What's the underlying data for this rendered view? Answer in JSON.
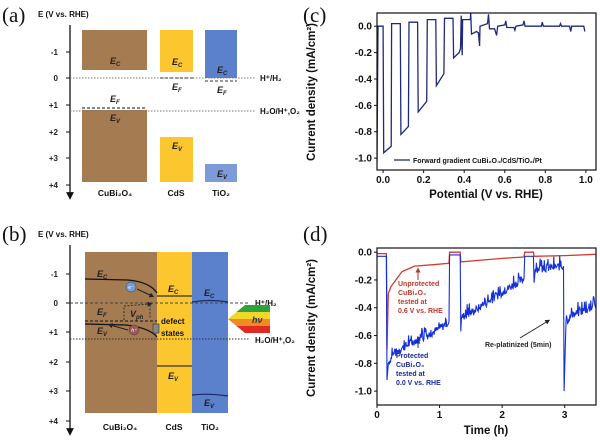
{
  "panel_a": {
    "label": "(a)",
    "axis_title": "E (V vs. RHE)",
    "ticks": [
      "-1",
      "0",
      "+1",
      "+2",
      "+3",
      "+4"
    ],
    "materials": [
      "CuBi₂O₄",
      "CdS",
      "TiO₂"
    ],
    "colors": {
      "CuBi2O4": "#a57b52",
      "CdS": "#fcc62f",
      "TiO2": "#5b80cc",
      "TiO2_vb": "#7c9bd8"
    },
    "band_symbol": "E",
    "subs": {
      "c": "C",
      "f": "F",
      "v": "V"
    },
    "redox": [
      "H⁺/H₂",
      "H₂O/H⁺,O₂"
    ]
  },
  "panel_b": {
    "label": "(b)",
    "axis_title": "E (V vs. RHE)",
    "ticks": [
      "-1",
      "0",
      "+1",
      "+2",
      "+3",
      "+4"
    ],
    "materials": [
      "CuBi₂O₄",
      "CdS",
      "TiO₂"
    ],
    "band_symbol": "E",
    "subs": {
      "c": "C",
      "f": "F",
      "v": "V",
      "ph": "ph"
    },
    "v_symbol": "V",
    "electron": "e⁻",
    "hole": "h⁺",
    "defect": [
      "defect",
      "states"
    ],
    "light": "hν",
    "redox": [
      "H⁺/H₂",
      "H₂O/H⁺,O₂"
    ]
  },
  "chart_data": [
    {
      "panel": "(c)",
      "type": "line",
      "xlabel": "Potential (V vs. RHE)",
      "ylabel": "Current density (mA/cm²)",
      "xlim": [
        -0.03,
        1.05
      ],
      "ylim": [
        -1.09,
        0.1
      ],
      "xticks": [
        "0.0",
        "0.2",
        "0.4",
        "0.6",
        "0.8",
        "1.0"
      ],
      "xtick_values": [
        0,
        0.2,
        0.4,
        0.6,
        0.8,
        1.0
      ],
      "yticks": [
        "0.0",
        "-0.2",
        "-0.4",
        "-0.6",
        "-0.8",
        "-1.0"
      ],
      "ytick_values": [
        0,
        -0.2,
        -0.4,
        -0.6,
        -0.8,
        -1.0
      ],
      "legend": "top-less; bottom-right",
      "series": [
        {
          "name": "Forward gradient CuBi₂O₄/CdS/TiO₂/Pt",
          "color": "#1f2a7a",
          "points": [
            [
              -0.03,
              -1.03
            ],
            [
              -0.025,
              0.0
            ],
            [
              0.0,
              0.0
            ],
            [
              0.003,
              -0.96
            ],
            [
              0.04,
              -0.91
            ],
            [
              0.042,
              0.02
            ],
            [
              0.085,
              0.02
            ],
            [
              0.088,
              -0.82
            ],
            [
              0.125,
              -0.76
            ],
            [
              0.128,
              0.03
            ],
            [
              0.17,
              0.03
            ],
            [
              0.173,
              -0.65
            ],
            [
              0.215,
              -0.57
            ],
            [
              0.218,
              0.05
            ],
            [
              0.26,
              0.05
            ],
            [
              0.263,
              -0.45
            ],
            [
              0.3,
              -0.36
            ],
            [
              0.303,
              0.06
            ],
            [
              0.345,
              0.06
            ],
            [
              0.348,
              -0.24
            ],
            [
              0.375,
              -0.2
            ],
            [
              0.382,
              -0.17
            ],
            [
              0.385,
              0.08
            ],
            [
              0.39,
              -0.22
            ],
            [
              0.392,
              0.05
            ],
            [
              0.43,
              0.05
            ],
            [
              0.432,
              0.1
            ],
            [
              0.436,
              -0.06
            ],
            [
              0.46,
              -0.04
            ],
            [
              0.47,
              -0.05
            ],
            [
              0.476,
              -0.15
            ],
            [
              0.478,
              0.0
            ],
            [
              0.515,
              0.02
            ],
            [
              0.52,
              0.09
            ],
            [
              0.525,
              -0.02
            ],
            [
              0.55,
              -0.02
            ],
            [
              0.56,
              -0.07
            ],
            [
              0.565,
              0.0
            ],
            [
              0.6,
              0.01
            ],
            [
              0.605,
              0.04
            ],
            [
              0.61,
              -0.01
            ],
            [
              0.645,
              -0.01
            ],
            [
              0.65,
              -0.03
            ],
            [
              0.655,
              0.0
            ],
            [
              0.69,
              0.01
            ],
            [
              0.695,
              0.04
            ],
            [
              0.7,
              0.0
            ],
            [
              0.78,
              0.0
            ],
            [
              0.785,
              0.03
            ],
            [
              0.79,
              0.0
            ],
            [
              0.87,
              0.0
            ],
            [
              0.875,
              0.02
            ],
            [
              0.88,
              0.0
            ],
            [
              0.92,
              0.0
            ],
            [
              0.925,
              -0.04
            ],
            [
              0.93,
              0.0
            ],
            [
              0.99,
              0.0
            ],
            [
              0.995,
              -0.04
            ]
          ]
        }
      ]
    },
    {
      "panel": "(d)",
      "type": "line",
      "xlabel": "Time (h)",
      "ylabel": "Current density (mA/cm²)",
      "xlim": [
        0,
        3.5
      ],
      "ylim": [
        -1.1,
        0.03
      ],
      "xticks": [
        "0",
        "1",
        "2",
        "3"
      ],
      "xtick_values": [
        0,
        1,
        2,
        3
      ],
      "yticks": [
        "0.0",
        "-0.2",
        "-0.4",
        "-0.6",
        "-0.8",
        "-1.0"
      ],
      "ytick_values": [
        0,
        -0.2,
        -0.4,
        -0.6,
        -0.8,
        -1.0
      ],
      "series": [
        {
          "name": "Unprotected",
          "color": "#d23a32",
          "points": [
            [
              0,
              -0.01
            ],
            [
              0.15,
              -0.01
            ],
            [
              0.16,
              -0.7
            ],
            [
              0.18,
              -0.3
            ],
            [
              0.22,
              -0.25
            ],
            [
              0.3,
              -0.2
            ],
            [
              0.4,
              -0.14
            ],
            [
              0.6,
              -0.1
            ],
            [
              0.9,
              -0.09
            ],
            [
              1.15,
              -0.08
            ],
            [
              1.16,
              0.0
            ],
            [
              1.33,
              0.0
            ],
            [
              1.34,
              -0.07
            ],
            [
              1.6,
              -0.06
            ],
            [
              2.0,
              -0.045
            ],
            [
              2.35,
              -0.035
            ],
            [
              2.36,
              0.0
            ],
            [
              2.5,
              0.0
            ],
            [
              2.51,
              -0.03
            ],
            [
              3.0,
              -0.025
            ],
            [
              3.5,
              -0.015
            ]
          ]
        },
        {
          "name": "Protected",
          "color": "#1530d8",
          "points": [
            [
              0,
              -0.03
            ],
            [
              0.15,
              -0.03
            ],
            [
              0.16,
              -0.92
            ],
            [
              0.18,
              -0.8
            ],
            [
              0.25,
              -0.74
            ],
            [
              0.4,
              -0.69
            ],
            [
              0.6,
              -0.64
            ],
            [
              0.8,
              -0.6
            ],
            [
              1.0,
              -0.55
            ],
            [
              1.15,
              -0.5
            ],
            [
              1.16,
              -0.02
            ],
            [
              1.33,
              -0.02
            ],
            [
              1.34,
              -0.57
            ],
            [
              1.35,
              -0.47
            ],
            [
              1.6,
              -0.41
            ],
            [
              1.8,
              -0.35
            ],
            [
              2.0,
              -0.29
            ],
            [
              2.2,
              -0.23
            ],
            [
              2.35,
              -0.19
            ],
            [
              2.36,
              -0.03
            ],
            [
              2.5,
              -0.03
            ],
            [
              2.51,
              -0.22
            ],
            [
              2.53,
              -0.12
            ],
            [
              2.8,
              -0.11
            ],
            [
              2.98,
              -0.1
            ],
            [
              2.99,
              -1.0
            ],
            [
              3.02,
              -0.5
            ],
            [
              3.1,
              -0.46
            ],
            [
              3.3,
              -0.42
            ],
            [
              3.5,
              -0.39
            ]
          ]
        }
      ],
      "annotations": {
        "unprotected": [
          "Unprotected",
          "CuBi₂O₄",
          "tested at",
          "0.6 V vs. RHE"
        ],
        "protected": [
          "Protected",
          "CuBi₂O₄",
          "tested at",
          "0.0 V vs. RHE"
        ],
        "replatinized": "Re-platinized (5min)"
      }
    }
  ]
}
